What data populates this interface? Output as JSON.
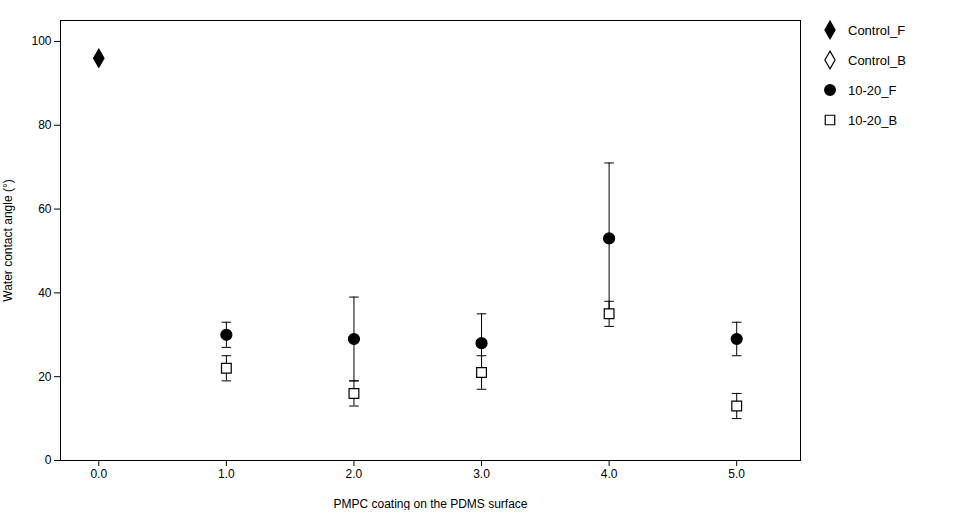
{
  "chart_data": {
    "type": "scatter",
    "xlabel": "PMPC coating on the PDMS surface",
    "ylabel": "Water contact angle (°)",
    "xlim": [
      -0.3,
      5.5
    ],
    "ylim": [
      0,
      105
    ],
    "xticks": [
      0,
      1,
      2,
      3,
      4,
      5
    ],
    "yticks": [
      0,
      20,
      40,
      60,
      80,
      100
    ],
    "legend": "right",
    "series": [
      {
        "name": "Control_F",
        "color": "#000000",
        "marker": "diamond",
        "line_style": "none",
        "x": [
          0
        ],
        "values": [
          96
        ],
        "yerr": [
          0
        ]
      },
      {
        "name": "Control_B",
        "color": "#000000",
        "marker": "diamond-open",
        "line_style": "none",
        "x": [],
        "values": [],
        "yerr": []
      },
      {
        "name": "10-20_F",
        "color": "#000000",
        "marker": "circle",
        "line_style": "none",
        "x": [
          1,
          2,
          3,
          4,
          5
        ],
        "values": [
          30,
          29,
          28,
          53,
          29
        ],
        "yerr": [
          3,
          10,
          7,
          18,
          4
        ]
      },
      {
        "name": "10-20_B",
        "color": "#000000",
        "marker": "square-open",
        "line_style": "none",
        "x": [
          1,
          2,
          3,
          4,
          5
        ],
        "values": [
          22,
          16,
          21,
          35,
          13
        ],
        "yerr": [
          3,
          3,
          4,
          3,
          3
        ]
      }
    ]
  }
}
